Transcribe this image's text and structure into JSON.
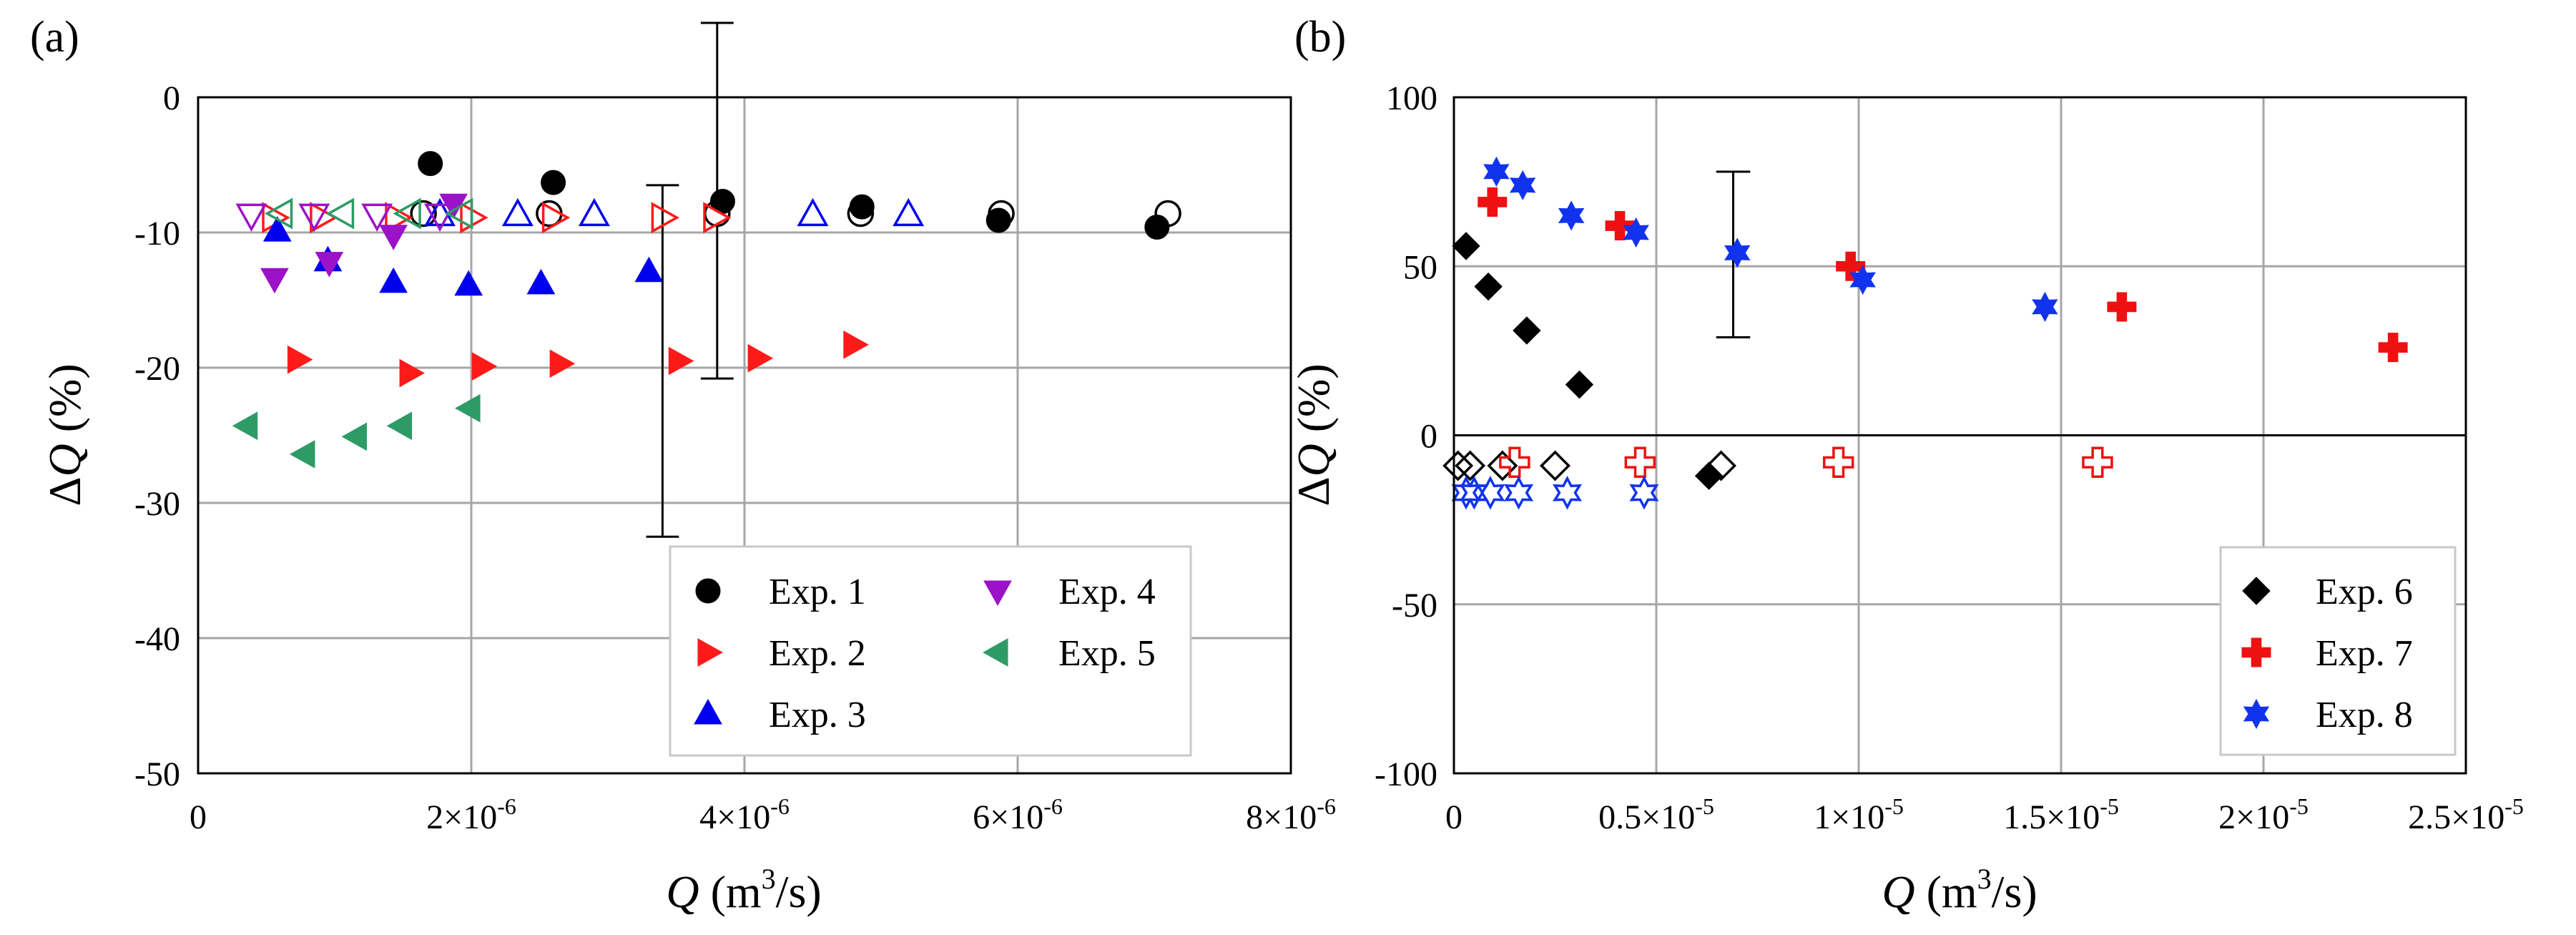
{
  "chart_data": [
    {
      "panel_label": "(a)",
      "type": "scatter",
      "xlabel_sym": "Q",
      "xlabel_unit": " (m",
      "xlabel_exp": "3",
      "xlabel_tail": "/s)",
      "ylabel_delta": "Δ",
      "ylabel_sym": "Q",
      "ylabel_tail": " (%)",
      "xlim": [
        0,
        8e-06
      ],
      "ylim": [
        -50,
        0
      ],
      "xticks": [
        {
          "v": 0,
          "m": "0",
          "e": ""
        },
        {
          "v": 2e-06,
          "m": "2×10",
          "e": "-6"
        },
        {
          "v": 4e-06,
          "m": "4×10",
          "e": "-6"
        },
        {
          "v": 6e-06,
          "m": "6×10",
          "e": "-6"
        },
        {
          "v": 8e-06,
          "m": "8×10",
          "e": "-6"
        }
      ],
      "yticks": [
        {
          "v": 0,
          "m": "0"
        },
        {
          "v": -10,
          "m": "-10"
        },
        {
          "v": -20,
          "m": "-20"
        },
        {
          "v": -30,
          "m": "-30"
        },
        {
          "v": -40,
          "m": "-40"
        },
        {
          "v": -50,
          "m": "-50"
        }
      ],
      "grid": true,
      "legend_position": "bottom-right",
      "legend_columns": 2,
      "error_bars": [
        {
          "x": 3.8e-06,
          "low": -20.8,
          "high": 5.5,
          "cap_dx": 1.2e-07
        },
        {
          "x": 3.4e-06,
          "low": -32.5,
          "high": -6.5,
          "cap_dx": 1.2e-07
        }
      ],
      "series": [
        {
          "name": "Exp. 1",
          "marker": "circle",
          "color": "#000000",
          "filled": [
            [
              1.7e-06,
              -4.9
            ],
            [
              2.6e-06,
              -6.3
            ],
            [
              3.84e-06,
              -7.7
            ],
            [
              4.86e-06,
              -8.1
            ],
            [
              5.86e-06,
              -9.1
            ],
            [
              7.02e-06,
              -9.6
            ]
          ],
          "open": [
            [
              1.65e-06,
              -8.6
            ],
            [
              2.57e-06,
              -8.6
            ],
            [
              3.8e-06,
              -8.6
            ],
            [
              4.85e-06,
              -8.6
            ],
            [
              5.88e-06,
              -8.6
            ],
            [
              7.1e-06,
              -8.6
            ]
          ]
        },
        {
          "name": "Exp. 2",
          "marker": "triangle-right",
          "color": "#ff1a1a",
          "filled": [
            [
              7.3e-07,
              -19.4
            ],
            [
              1.55e-06,
              -20.4
            ],
            [
              2.08e-06,
              -19.9
            ],
            [
              2.65e-06,
              -19.7
            ],
            [
              3.52e-06,
              -19.5
            ],
            [
              4.1e-06,
              -19.3
            ],
            [
              4.8e-06,
              -18.3
            ]
          ],
          "open": [
            [
              5.5e-07,
              -8.9
            ],
            [
              9e-07,
              -8.9
            ],
            [
              1.45e-06,
              -8.9
            ],
            [
              2e-06,
              -8.9
            ],
            [
              2.6e-06,
              -8.9
            ],
            [
              3.4e-06,
              -8.9
            ],
            [
              3.78e-06,
              -8.9
            ]
          ]
        },
        {
          "name": "Exp. 3",
          "marker": "triangle-up",
          "color": "#0000ee",
          "filled": [
            [
              5.8e-07,
              -9.9
            ],
            [
              9.5e-07,
              -12.1
            ],
            [
              1.43e-06,
              -13.7
            ],
            [
              1.98e-06,
              -13.9
            ],
            [
              2.51e-06,
              -13.8
            ],
            [
              3.3e-06,
              -12.9
            ]
          ],
          "open": [
            [
              1.77e-06,
              -8.7
            ],
            [
              2.34e-06,
              -8.7
            ],
            [
              2.9e-06,
              -8.7
            ],
            [
              4.5e-06,
              -8.7
            ],
            [
              5.2e-06,
              -8.7
            ]
          ]
        },
        {
          "name": "Exp. 4",
          "marker": "triangle-down",
          "color": "#9b12c8",
          "filled": [
            [
              5.6e-07,
              -13.4
            ],
            [
              9.6e-07,
              -12.2
            ],
            [
              1.43e-06,
              -10.2
            ],
            [
              1.87e-06,
              -7.9
            ]
          ],
          "open": [
            [
              3.9e-07,
              -8.7
            ],
            [
              8.5e-07,
              -8.7
            ],
            [
              1.31e-06,
              -8.7
            ],
            [
              1.77e-06,
              -8.7
            ]
          ]
        },
        {
          "name": "Exp. 5",
          "marker": "triangle-left",
          "color": "#2e9b66",
          "filled": [
            [
              3.6e-07,
              -24.3
            ],
            [
              7.8e-07,
              -26.4
            ],
            [
              1.16e-06,
              -25.1
            ],
            [
              1.49e-06,
              -24.3
            ],
            [
              1.99e-06,
              -23.0
            ]
          ],
          "open": [
            [
              6.1e-07,
              -8.6
            ],
            [
              1.06e-06,
              -8.6
            ],
            [
              1.55e-06,
              -8.6
            ],
            [
              1.93e-06,
              -8.6
            ]
          ]
        }
      ],
      "legend": [
        "Exp. 1",
        "Exp. 2",
        "Exp. 3",
        "Exp. 4",
        "Exp. 5"
      ]
    },
    {
      "panel_label": "(b)",
      "type": "scatter",
      "xlabel_sym": "Q",
      "xlabel_unit": " (m",
      "xlabel_exp": "3",
      "xlabel_tail": "/s)",
      "ylabel_delta": "Δ",
      "ylabel_sym": "Q",
      "ylabel_tail": " (%)",
      "xlim": [
        0,
        2.5e-05
      ],
      "ylim": [
        -100,
        100
      ],
      "xticks": [
        {
          "v": 0,
          "m": "0",
          "e": ""
        },
        {
          "v": 5e-06,
          "m": "0.5×10",
          "e": "-5"
        },
        {
          "v": 1e-05,
          "m": "1×10",
          "e": "-5"
        },
        {
          "v": 1.5e-05,
          "m": "1.5×10",
          "e": "-5"
        },
        {
          "v": 2e-05,
          "m": "2×10",
          "e": "-5"
        },
        {
          "v": 2.5e-05,
          "m": "2.5×10",
          "e": "-5"
        }
      ],
      "yticks": [
        {
          "v": 100,
          "m": "100"
        },
        {
          "v": 50,
          "m": "50"
        },
        {
          "v": 0,
          "m": "0"
        },
        {
          "v": -50,
          "m": "-50"
        },
        {
          "v": -100,
          "m": "-100"
        }
      ],
      "grid": true,
      "zero_line": true,
      "legend_position": "bottom-right",
      "legend_columns": 1,
      "error_bars": [
        {
          "x": 6.9e-06,
          "low": 29,
          "high": 78,
          "cap_dx": 4.2e-07
        }
      ],
      "series": [
        {
          "name": "Exp. 6",
          "marker": "diamond",
          "color": "#000000",
          "filled": [
            [
              3e-07,
              56
            ],
            [
              8.5e-07,
              44
            ],
            [
              1.8e-06,
              31
            ],
            [
              3.1e-06,
              15
            ],
            [
              6.3e-06,
              -12
            ]
          ],
          "open": [
            [
              1e-07,
              -9
            ],
            [
              4e-07,
              -9
            ],
            [
              1.2e-06,
              -9
            ],
            [
              2.5e-06,
              -9
            ],
            [
              6.6e-06,
              -9
            ]
          ]
        },
        {
          "name": "Exp. 7",
          "marker": "cross",
          "color": "#ee1111",
          "filled": [
            [
              9.5e-07,
              69
            ],
            [
              4.1e-06,
              62
            ],
            [
              9.8e-06,
              50
            ],
            [
              1.65e-05,
              38
            ],
            [
              2.32e-05,
              26
            ]
          ],
          "open": [
            [
              1.5e-06,
              -8
            ],
            [
              4.6e-06,
              -8
            ],
            [
              9.5e-06,
              -8
            ],
            [
              1.59e-05,
              -8
            ]
          ]
        },
        {
          "name": "Exp. 8",
          "marker": "star",
          "color": "#1133ee",
          "filled": [
            [
              1.05e-06,
              78
            ],
            [
              1.7e-06,
              74
            ],
            [
              2.9e-06,
              65
            ],
            [
              4.5e-06,
              60
            ],
            [
              7e-06,
              54
            ],
            [
              1.01e-05,
              46
            ],
            [
              1.46e-05,
              38
            ]
          ],
          "open": [
            [
              3e-07,
              -17
            ],
            [
              5e-07,
              -17
            ],
            [
              9e-07,
              -17
            ],
            [
              1.6e-06,
              -17
            ],
            [
              2.8e-06,
              -17
            ],
            [
              4.7e-06,
              -17
            ]
          ]
        }
      ],
      "legend": [
        "Exp. 6",
        "Exp. 7",
        "Exp. 8"
      ]
    }
  ]
}
